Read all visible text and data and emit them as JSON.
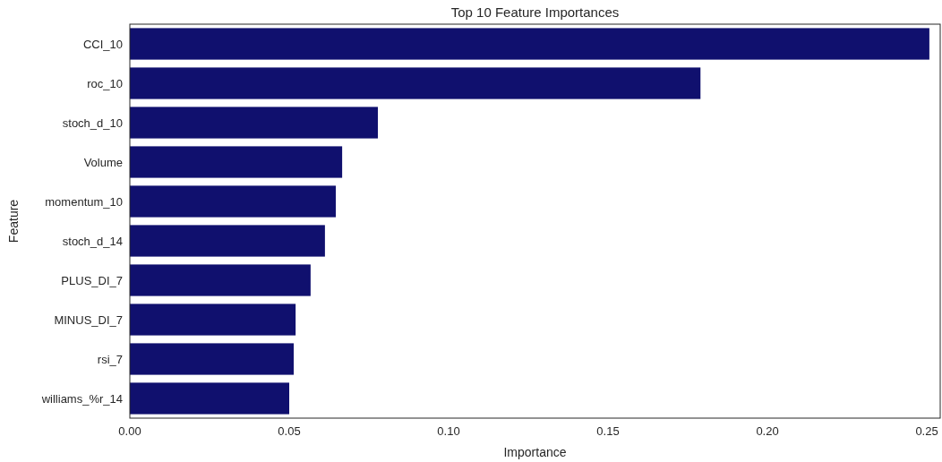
{
  "chart_data": {
    "type": "bar",
    "orientation": "horizontal",
    "title": "Top 10 Feature Importances",
    "xlabel": "Importance",
    "ylabel": "Feature",
    "categories": [
      "CCI_10",
      "roc_10",
      "stoch_d_10",
      "Volume",
      "momentum_10",
      "stoch_d_14",
      "PLUS_DI_7",
      "MINUS_DI_7",
      "rsi_7",
      "williams_%r_14"
    ],
    "values": [
      0.2508,
      0.179,
      0.0778,
      0.0666,
      0.0646,
      0.0612,
      0.0567,
      0.052,
      0.0514,
      0.05
    ],
    "color": "#10106e",
    "xlim": [
      0,
      0.2542
    ],
    "xticks": [
      {
        "value": 0,
        "label": "0.00"
      },
      {
        "value": 0.05,
        "label": "0.05"
      },
      {
        "value": 0.1,
        "label": "0.10"
      },
      {
        "value": 0.15,
        "label": "0.15"
      },
      {
        "value": 0.2,
        "label": "0.20"
      },
      {
        "value": 0.25,
        "label": "0.25"
      }
    ],
    "grid": false
  }
}
